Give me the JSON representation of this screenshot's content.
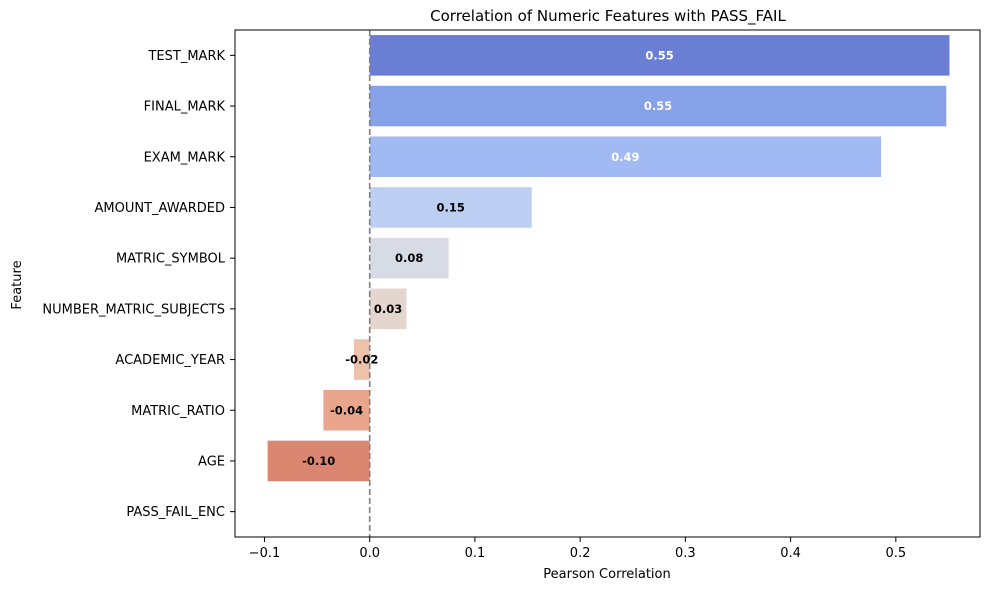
{
  "chart_data": {
    "type": "bar",
    "orientation": "horizontal",
    "title": "Correlation of Numeric Features with PASS_FAIL",
    "xlabel": "Pearson Correlation",
    "ylabel": "Feature",
    "xlim": [
      -0.128,
      0.58
    ],
    "xticks": [
      -0.1,
      0.0,
      0.1,
      0.2,
      0.3,
      0.4,
      0.5
    ],
    "xtick_labels": [
      "−0.1",
      "0.0",
      "0.1",
      "0.2",
      "0.3",
      "0.4",
      "0.5"
    ],
    "reference_line": {
      "x": 0.0,
      "style": "dashed",
      "color": "#808080"
    },
    "categories": [
      "TEST_MARK",
      "FINAL_MARK",
      "EXAM_MARK",
      "AMOUNT_AWARDED",
      "MATRIC_SYMBOL",
      "NUMBER_MATRIC_SUBJECTS",
      "ACADEMIC_YEAR",
      "MATRIC_RATIO",
      "AGE",
      "PASS_FAIL_ENC"
    ],
    "values": [
      0.551,
      0.548,
      0.486,
      0.154,
      0.075,
      0.035,
      -0.015,
      -0.044,
      -0.097,
      null
    ],
    "data_labels": [
      "0.55",
      "0.55",
      "0.49",
      "0.15",
      "0.08",
      "0.03",
      "-0.02",
      "-0.04",
      "-0.10",
      ""
    ],
    "colors": [
      "#6a7fd4",
      "#87a1e8",
      "#a1baf4",
      "#bccff2",
      "#d6dbe6",
      "#e4d5ce",
      "#eec1ab",
      "#eaa68d",
      "#db8671",
      "#ffffff"
    ],
    "label_colors": [
      "#ffffff",
      "#ffffff",
      "#ffffff",
      "#000000",
      "#000000",
      "#000000",
      "#000000",
      "#000000",
      "#000000",
      "#000000"
    ],
    "grid": false
  }
}
